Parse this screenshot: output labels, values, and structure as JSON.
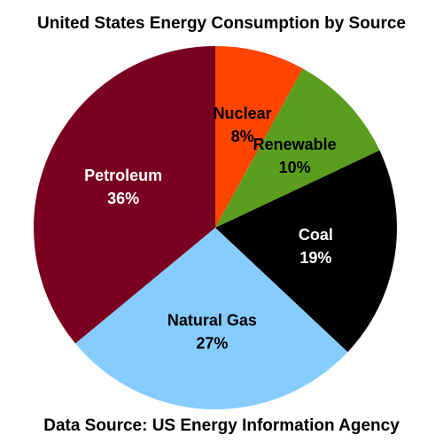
{
  "chart_data": {
    "type": "pie",
    "title": "United States Energy Consumption by Source",
    "source": "Data Source: US Energy Information Agency",
    "slices": [
      {
        "label": "Nuclear",
        "value": 8,
        "value_label": "8%",
        "color": "#FF4500",
        "text_color": "#000000"
      },
      {
        "label": "Renewable",
        "value": 10,
        "value_label": "10%",
        "color": "#5B9E1E",
        "text_color": "#000000"
      },
      {
        "label": "Coal",
        "value": 19,
        "value_label": "19%",
        "color": "#000000",
        "text_color": "#FFFFFF"
      },
      {
        "label": "Natural Gas",
        "value": 27,
        "value_label": "27%",
        "color": "#87CCFF",
        "text_color": "#000000"
      },
      {
        "label": "Petroleum",
        "value": 36,
        "value_label": "36%",
        "color": "#7A0022",
        "text_color": "#FFFFFF"
      }
    ],
    "start_angle": "12 o'clock",
    "direction": "clockwise",
    "legend": "none"
  }
}
